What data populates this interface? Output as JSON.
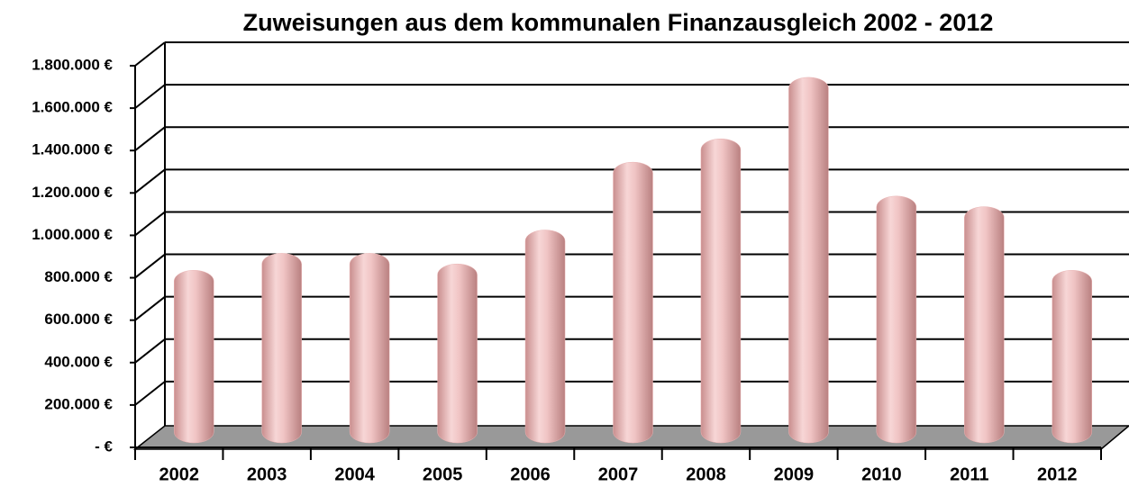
{
  "chart_data": {
    "type": "bar",
    "title": "Zuweisungen aus dem kommunalen Finanzausgleich 2002 - 2012",
    "categories": [
      "2002",
      "2003",
      "2004",
      "2005",
      "2006",
      "2007",
      "2008",
      "2009",
      "2010",
      "2011",
      "2012"
    ],
    "values": [
      780000,
      860000,
      860000,
      810000,
      970000,
      1290000,
      1400000,
      1690000,
      1130000,
      1080000,
      780000
    ],
    "color": "#eab4b4",
    "ylim": [
      0,
      1800000
    ],
    "yticks": [
      {
        "value": 0,
        "label": "- €"
      },
      {
        "value": 200000,
        "label": "200.000 €"
      },
      {
        "value": 400000,
        "label": "400.000 €"
      },
      {
        "value": 600000,
        "label": "600.000 €"
      },
      {
        "value": 800000,
        "label": "800.000 €"
      },
      {
        "value": 1000000,
        "label": "1.000.000 €"
      },
      {
        "value": 1200000,
        "label": "1.200.000 €"
      },
      {
        "value": 1400000,
        "label": "1.400.000 €"
      },
      {
        "value": 1600000,
        "label": "1.600.000 €"
      },
      {
        "value": 1800000,
        "label": "1.800.000 €"
      }
    ],
    "grid": true
  }
}
